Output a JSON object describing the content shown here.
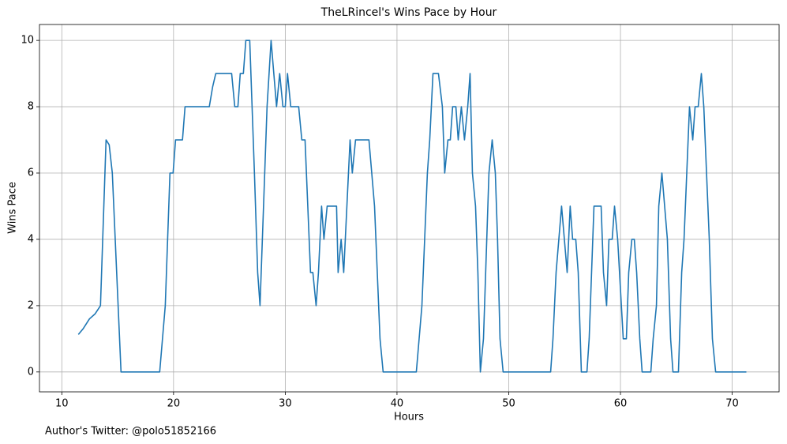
{
  "chart_data": {
    "type": "line",
    "title": "TheLRincel's Wins Pace by Hour",
    "x_label": "Hours",
    "y_label": "Wins Pace",
    "annotation": "Author's Twitter: @polo51852166",
    "x": [
      11.48,
      11.9,
      12.47,
      12.97,
      13.46,
      13.96,
      14.24,
      14.52,
      15.3,
      18.76,
      19.26,
      19.68,
      19.96,
      20.18,
      20.8,
      21.03,
      23.2,
      23.5,
      23.78,
      25.2,
      25.48,
      25.76,
      25.97,
      26.25,
      26.47,
      26.82,
      27.24,
      27.53,
      27.74,
      28.37,
      28.73,
      29.22,
      29.5,
      29.79,
      30.0,
      30.2,
      30.49,
      31.2,
      31.48,
      31.77,
      32.26,
      32.47,
      32.76,
      32.97,
      33.25,
      33.46,
      33.75,
      34.59,
      34.73,
      35.0,
      35.23,
      35.8,
      36.0,
      36.29,
      37.49,
      37.99,
      38.48,
      38.76,
      41.73,
      42.23,
      42.72,
      42.93,
      43.22,
      43.71,
      44.06,
      44.27,
      44.56,
      44.77,
      44.98,
      45.27,
      45.48,
      45.76,
      46.04,
      46.33,
      46.54,
      46.75,
      47.03,
      47.24,
      47.46,
      47.74,
      48.23,
      48.52,
      48.8,
      49.0,
      49.22,
      49.5,
      53.75,
      53.96,
      54.24,
      54.73,
      55.23,
      55.5,
      55.72,
      56.0,
      56.22,
      56.5,
      57.0,
      57.2,
      57.63,
      58.27,
      58.48,
      58.76,
      58.97,
      59.26,
      59.47,
      59.75,
      60.25,
      60.53,
      60.74,
      61.02,
      61.24,
      61.45,
      61.73,
      61.94,
      62.72,
      62.93,
      63.22,
      63.43,
      63.71,
      64.2,
      64.49,
      64.7,
      65.19,
      65.48,
      65.69,
      66.18,
      66.47,
      66.68,
      66.96,
      67.24,
      67.46,
      67.95,
      68.23,
      68.52,
      71.27
    ],
    "values": [
      1.13,
      1.3,
      1.6,
      1.75,
      2,
      7,
      6.85,
      6,
      0,
      0,
      2,
      6,
      6,
      7,
      7,
      8,
      8,
      8.6,
      9,
      9,
      8,
      8,
      9,
      9,
      10,
      10,
      6,
      3,
      2,
      8,
      10,
      8,
      9,
      8,
      8,
      9,
      8,
      8,
      7,
      7,
      3,
      3,
      2,
      3,
      5,
      4,
      5,
      5,
      3,
      4,
      3,
      7,
      6,
      7,
      7,
      5,
      1,
      0,
      0,
      2,
      6,
      7,
      9,
      9,
      8,
      6,
      7,
      7,
      8,
      8,
      7,
      8,
      7,
      8,
      9,
      6,
      5,
      3,
      0,
      1,
      6,
      7,
      6,
      4,
      1,
      0,
      0,
      1,
      3,
      5,
      3,
      5,
      4,
      4,
      3,
      0,
      0,
      1,
      5,
      5,
      3,
      2,
      4,
      4,
      5,
      4,
      1,
      1,
      3,
      4,
      4,
      3,
      1,
      0,
      0,
      1,
      2,
      5,
      6,
      4,
      1,
      0,
      0,
      3,
      4,
      8,
      7,
      8,
      8,
      9,
      8,
      4,
      1,
      0,
      0
    ],
    "color": "#1f77b4",
    "xlim": [
      8.0,
      74.2
    ],
    "ylim": [
      -0.6,
      10.48
    ],
    "xticks": [
      10,
      20,
      30,
      40,
      50,
      60,
      70
    ],
    "yticks": [
      0,
      2,
      4,
      6,
      8,
      10
    ],
    "grid": true
  }
}
